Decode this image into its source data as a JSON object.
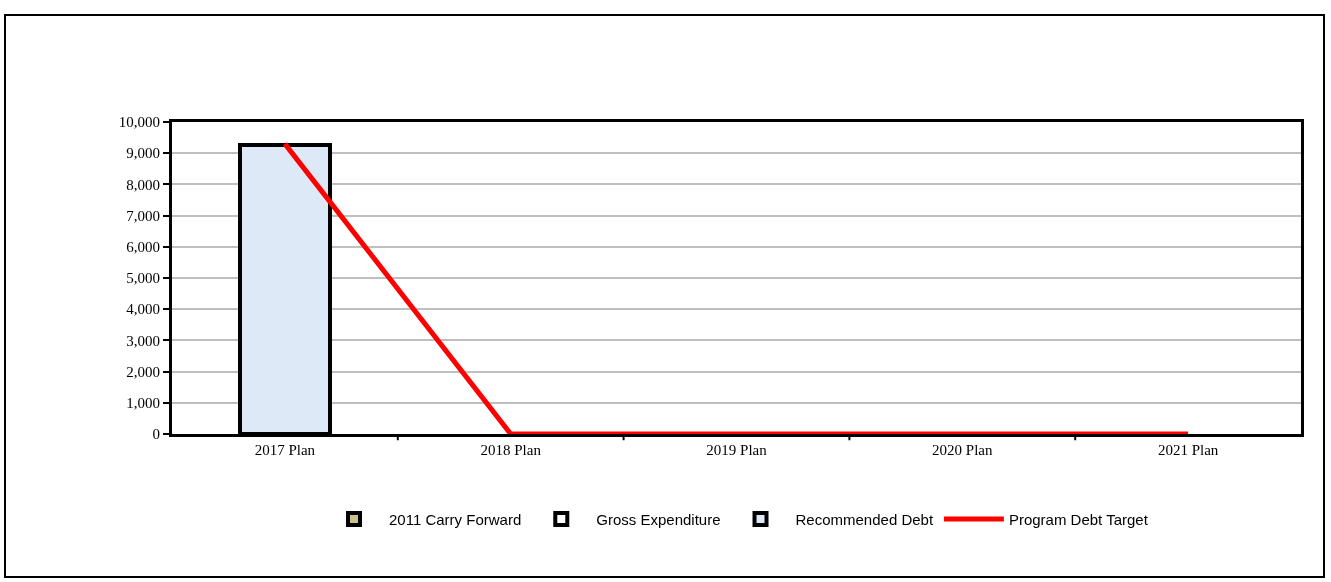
{
  "chart_data": {
    "type": "bar",
    "stacked": true,
    "categories": [
      "2017 Plan",
      "2018 Plan",
      "2019 Plan",
      "2020 Plan",
      "2021 Plan"
    ],
    "series": [
      {
        "name": "2011 Carry Forward",
        "color": "#c9c08a",
        "values": [
          0,
          0,
          0,
          0,
          0
        ]
      },
      {
        "name": "Gross Expenditure",
        "color": "#ffffff",
        "values": [
          0,
          0,
          0,
          0,
          0
        ]
      },
      {
        "name": "Recommended Debt",
        "color": "#dde9f7",
        "values": [
          9250,
          0,
          0,
          0,
          0
        ]
      },
      {
        "name": "Program Debt Target",
        "type": "line",
        "color": "#ff0000",
        "values": [
          9300,
          0,
          0,
          0,
          0
        ]
      }
    ],
    "ylim": [
      0,
      10000
    ],
    "yticks": [
      {
        "value": 0,
        "label": "0"
      },
      {
        "value": 1000,
        "label": "1,000"
      },
      {
        "value": 2000,
        "label": "2,000"
      },
      {
        "value": 3000,
        "label": "3,000"
      },
      {
        "value": 4000,
        "label": "4,000"
      },
      {
        "value": 5000,
        "label": "5,000"
      },
      {
        "value": 6000,
        "label": "6,000"
      },
      {
        "value": 7000,
        "label": "7,000"
      },
      {
        "value": 8000,
        "label": "8,000"
      },
      {
        "value": 9000,
        "label": "9,000"
      },
      {
        "value": 10000,
        "label": "10,000"
      }
    ],
    "grid": "y",
    "legend": "bottom",
    "marker": "none",
    "line_style": "solid"
  }
}
